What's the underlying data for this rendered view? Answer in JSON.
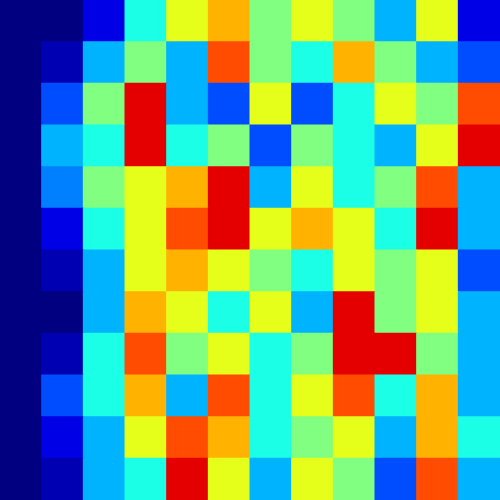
{
  "chart_data": {
    "type": "heatmap",
    "x": [
      0,
      1,
      2,
      3,
      4,
      5,
      6,
      7,
      8,
      9,
      10,
      11
    ],
    "y": [
      0,
      1,
      2,
      3,
      4,
      5,
      6,
      7,
      8,
      9,
      10,
      11
    ],
    "xlim": [
      -0.5,
      11.5
    ],
    "ylim": [
      -0.5,
      11.5
    ],
    "tick_labels": false,
    "grid": false,
    "color_range": [
      0,
      1
    ],
    "cells": [
      [
        0,
        0,
        0.1,
        0.4,
        0.6,
        0.7,
        0.5,
        0.6,
        0.5,
        0.3,
        0.6,
        0.1
      ],
      [
        0,
        0.05,
        0.3,
        0.5,
        0.3,
        0.8,
        0.5,
        0.4,
        0.7,
        0.5,
        0.3,
        0.2
      ],
      [
        0,
        0.2,
        0.5,
        0.9,
        0.3,
        0.2,
        0.6,
        0.2,
        0.4,
        0.6,
        0.5,
        0.8
      ],
      [
        0,
        0.3,
        0.4,
        0.9,
        0.4,
        0.5,
        0.2,
        0.5,
        0.4,
        0.3,
        0.6,
        0.9
      ],
      [
        0,
        0.25,
        0.5,
        0.6,
        0.7,
        0.9,
        0.3,
        0.6,
        0.4,
        0.5,
        0.8,
        0.3
      ],
      [
        0,
        0.1,
        0.4,
        0.6,
        0.8,
        0.9,
        0.6,
        0.7,
        0.6,
        0.4,
        0.9,
        0.3
      ],
      [
        0,
        0.05,
        0.3,
        0.6,
        0.7,
        0.6,
        0.5,
        0.4,
        0.6,
        0.5,
        0.6,
        0.2
      ],
      [
        0,
        0,
        0.3,
        0.7,
        0.6,
        0.4,
        0.6,
        0.3,
        0.9,
        0.5,
        0.6,
        0.3
      ],
      [
        0,
        0.05,
        0.4,
        0.8,
        0.5,
        0.6,
        0.4,
        0.5,
        0.9,
        0.9,
        0.5,
        0.3
      ],
      [
        0,
        0.2,
        0.4,
        0.7,
        0.3,
        0.8,
        0.4,
        0.6,
        0.8,
        0.4,
        0.7,
        0.3
      ],
      [
        0,
        0.1,
        0.3,
        0.6,
        0.8,
        0.7,
        0.4,
        0.5,
        0.6,
        0.3,
        0.7,
        0.4
      ],
      [
        0,
        0.05,
        0.3,
        0.4,
        0.9,
        0.6,
        0.3,
        0.6,
        0.5,
        0.2,
        0.8,
        0.3
      ]
    ]
  }
}
